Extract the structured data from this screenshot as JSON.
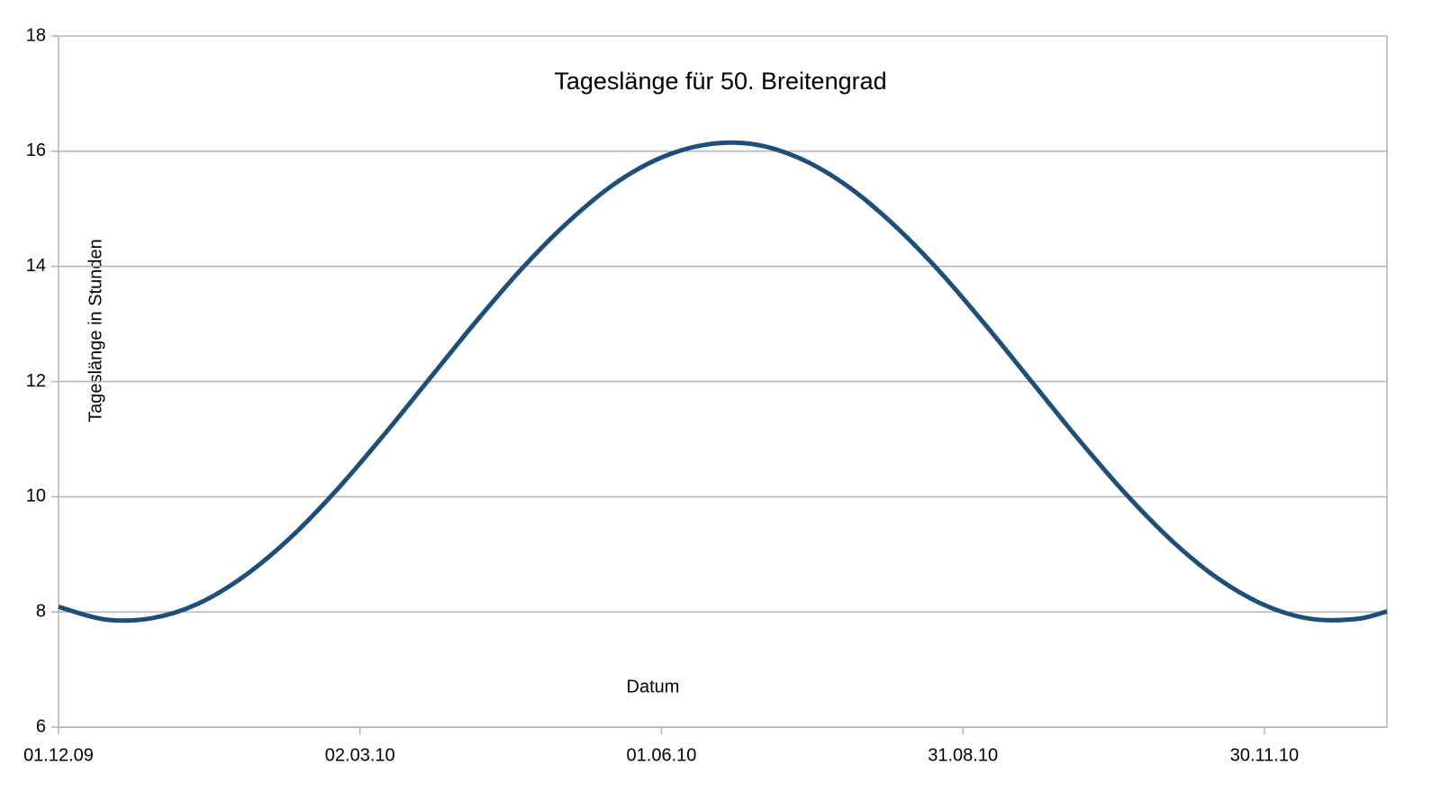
{
  "chart_data": {
    "type": "line",
    "title": "Tageslänge für 50. Breitengrad",
    "x_label": "Datum",
    "y_label": "Tageslänge in Stunden",
    "x": [
      "01.12.09",
      "15.12.09",
      "29.12.09",
      "12.01.10",
      "26.01.10",
      "09.02.10",
      "23.02.10",
      "09.03.10",
      "23.03.10",
      "06.04.10",
      "20.04.10",
      "04.05.10",
      "18.05.10",
      "01.06.10",
      "15.06.10",
      "29.06.10",
      "13.07.10",
      "27.07.10",
      "10.08.10",
      "24.08.10",
      "07.09.10",
      "21.09.10",
      "05.10.10",
      "19.10.10",
      "02.11.10",
      "16.11.10",
      "30.11.10",
      "14.12.10",
      "28.12.10",
      "06.01.11"
    ],
    "values": [
      8.09,
      7.87,
      7.89,
      8.14,
      8.62,
      9.29,
      10.12,
      11.06,
      12.05,
      13.04,
      13.97,
      14.78,
      15.44,
      15.89,
      16.12,
      16.12,
      15.87,
      15.4,
      14.73,
      13.91,
      12.97,
      11.98,
      10.99,
      10.06,
      9.24,
      8.58,
      8.12,
      7.88,
      7.88,
      8.01
    ],
    "color": "#1f4e79",
    "xlim": [
      "01.12.09",
      "06.01.11"
    ],
    "xticks": [
      "01.12.09",
      "02.03.10",
      "01.06.10",
      "31.08.10",
      "30.11.10"
    ],
    "ylim": [
      6,
      18
    ],
    "yticks": [
      6,
      8,
      10,
      12,
      14,
      16,
      18
    ],
    "grid": true
  }
}
